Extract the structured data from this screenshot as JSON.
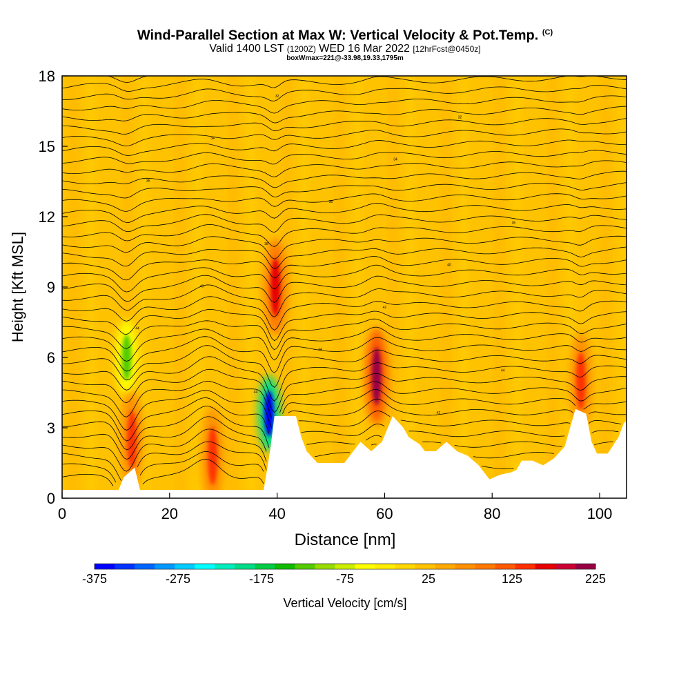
{
  "title": {
    "main": "Wind-Parallel Section at Max W: Vertical Velocity & Pot.Temp.",
    "copyright": "(C)",
    "valid_prefix": "Valid 1400 LST",
    "valid_utc": "(1200Z)",
    "valid_date": "WED 16 Mar 2022",
    "forecast": "[12hrFcst@0450z]",
    "box_info": "boxWmax=221@-33.98,19.33,1795m"
  },
  "chart_data": {
    "type": "heatmap",
    "xlabel": "Distance [nm]",
    "ylabel": "Height [Kft MSL]",
    "xlim": [
      0,
      105
    ],
    "ylim": [
      0,
      18
    ],
    "x_ticks": [
      0,
      20,
      40,
      60,
      80,
      100
    ],
    "y_ticks": [
      0,
      3,
      6,
      9,
      12,
      15,
      18
    ],
    "colorbar": {
      "label": "Vertical Velocity [cm/s]",
      "min": -375,
      "max": 225,
      "tick_values": [
        -375,
        -275,
        -175,
        -75,
        25,
        125,
        225
      ],
      "tick_labels": [
        "-375",
        "-275",
        "-175",
        "-75",
        "25",
        "125",
        "225"
      ],
      "colors": [
        "#0000ff",
        "#0033ff",
        "#0066ff",
        "#0099ff",
        "#00ccff",
        "#00ffff",
        "#00eebb",
        "#00dd88",
        "#00cc44",
        "#11bb00",
        "#55cc00",
        "#99dd00",
        "#ccee00",
        "#ffff00",
        "#ffee00",
        "#ffd800",
        "#ffc200",
        "#ffaa00",
        "#ff9000",
        "#ff7800",
        "#ff5a00",
        "#ff3000",
        "#e60000",
        "#cc0033",
        "#990044"
      ]
    },
    "terrain_profile": {
      "x": [
        0,
        10.5,
        11.5,
        13.5,
        14.5,
        37.5,
        38.2,
        38.8,
        39.5,
        43.5,
        44.5,
        45.5,
        47.5,
        52.5,
        53.5,
        55.5,
        57.5,
        59.5,
        61.5,
        63.5,
        64.5,
        66.5,
        67.5,
        69.5,
        71.5,
        73.5,
        75.5,
        77.5,
        79.5,
        81.5,
        83.5,
        84.5,
        85.5,
        87.5,
        89.5,
        91.5,
        93.5,
        94.5,
        95.5,
        97.5,
        98.5,
        99.5,
        101.5,
        103.5,
        104.5,
        105
      ],
      "height_kft": [
        0.35,
        0.35,
        0.9,
        1.3,
        0.35,
        0.35,
        1.3,
        2.2,
        3.5,
        3.5,
        2.6,
        2.0,
        1.5,
        1.5,
        1.8,
        2.4,
        2.0,
        2.4,
        3.5,
        3.0,
        2.6,
        2.3,
        2.0,
        2.0,
        2.4,
        2.0,
        1.8,
        1.4,
        0.8,
        1.0,
        1.1,
        1.2,
        1.6,
        1.6,
        1.4,
        1.7,
        2.2,
        3.0,
        3.8,
        3.6,
        2.4,
        1.9,
        1.9,
        2.6,
        3.2,
        3.3
      ]
    },
    "vertical_velocity_features": [
      {
        "kind": "downdraft",
        "x": 38.5,
        "height_kft": 3.6,
        "peak_cm_s": -375
      },
      {
        "kind": "downdraft",
        "x": 12.0,
        "height_kft": 6.0,
        "peak_cm_s": -120
      },
      {
        "kind": "updraft",
        "x": 58.5,
        "height_kft": 5.2,
        "peak_cm_s": 221
      },
      {
        "kind": "updraft",
        "x": 39.7,
        "height_kft": 9.0,
        "peak_cm_s": 170
      },
      {
        "kind": "updraft",
        "x": 13.0,
        "height_kft": 2.5,
        "peak_cm_s": 130
      },
      {
        "kind": "updraft",
        "x": 28.0,
        "height_kft": 1.8,
        "peak_cm_s": 140
      },
      {
        "kind": "updraft",
        "x": 96.5,
        "height_kft": 5.0,
        "peak_cm_s": 130
      }
    ],
    "theta_contour_count": 39,
    "theta_contour_levels": [
      "42",
      "44",
      "44",
      "44",
      "44",
      "42",
      "40",
      "40",
      "38",
      "36",
      "36",
      "36",
      "34",
      "34",
      "32",
      "32",
      "30",
      "30",
      "28",
      "26",
      "24",
      "22",
      "22",
      "20"
    ]
  }
}
